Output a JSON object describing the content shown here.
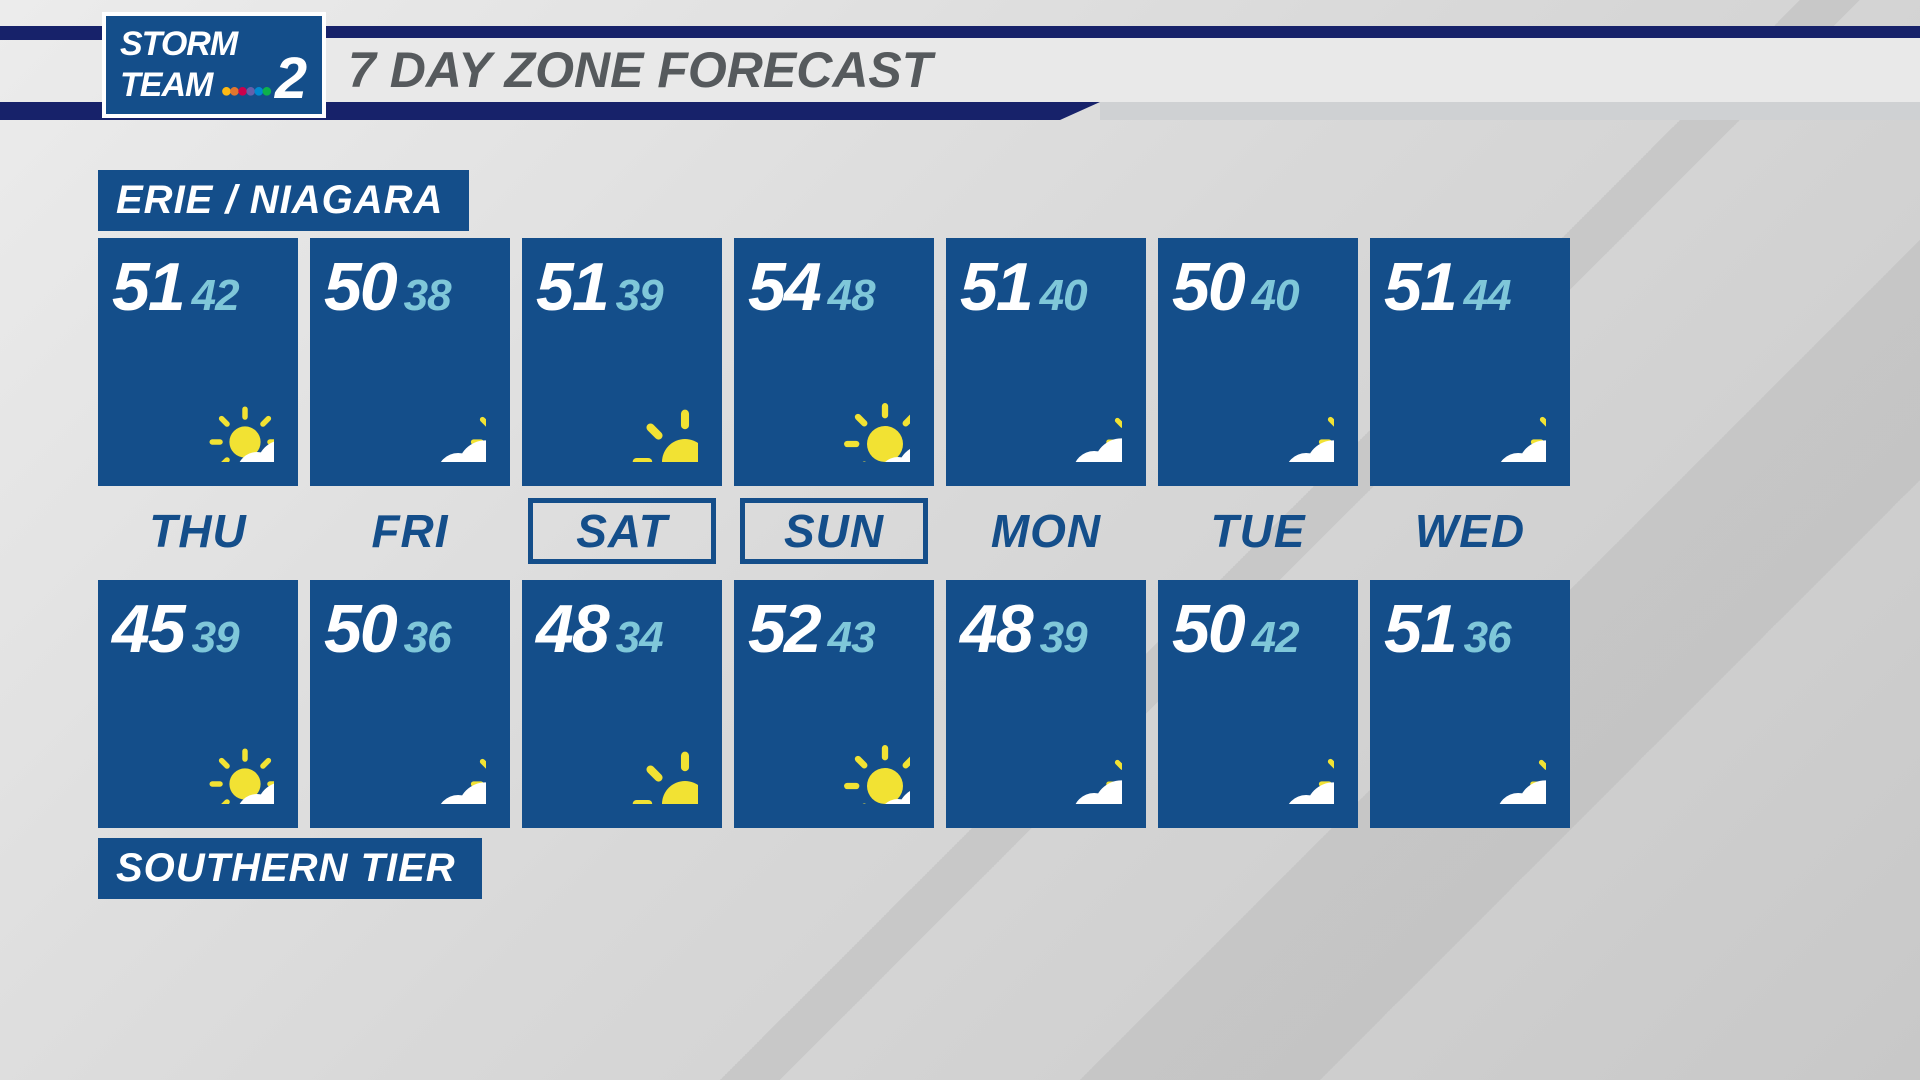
{
  "header": {
    "logo_line1": "STORM",
    "logo_line2a": "TEAM",
    "logo_line2b": "2",
    "title": "7 DAY ZONE FORECAST"
  },
  "colors": {
    "card_bg": "#144e8a",
    "navy": "#17226a",
    "strip_bg": "#e9e9e9",
    "title_text": "#565a5d",
    "hi_text": "#ffffff",
    "lo_text": "#7fc7d9",
    "sun": "#f2e233",
    "cloud": "#ffffff",
    "drop": "#69b9d1"
  },
  "zones": {
    "top_label": "ERIE / NIAGARA",
    "bottom_label": "SOUTHERN TIER"
  },
  "days": [
    {
      "abbr": "THU",
      "weekend": false
    },
    {
      "abbr": "FRI",
      "weekend": false
    },
    {
      "abbr": "SAT",
      "weekend": true
    },
    {
      "abbr": "SUN",
      "weekend": true
    },
    {
      "abbr": "MON",
      "weekend": false
    },
    {
      "abbr": "TUE",
      "weekend": false
    },
    {
      "abbr": "WED",
      "weekend": false
    }
  ],
  "forecast_top": [
    {
      "hi": "51",
      "lo": "42",
      "icon": "sun-cloud-drop"
    },
    {
      "hi": "50",
      "lo": "38",
      "icon": "cloud-sun"
    },
    {
      "hi": "51",
      "lo": "39",
      "icon": "mostly-sunny"
    },
    {
      "hi": "54",
      "lo": "48",
      "icon": "sun-cloud"
    },
    {
      "hi": "51",
      "lo": "40",
      "icon": "cloud-sun-drop"
    },
    {
      "hi": "50",
      "lo": "40",
      "icon": "cloud-sun"
    },
    {
      "hi": "51",
      "lo": "44",
      "icon": "cloud-sun"
    }
  ],
  "forecast_bottom": [
    {
      "hi": "45",
      "lo": "39",
      "icon": "sun-cloud-drop"
    },
    {
      "hi": "50",
      "lo": "36",
      "icon": "cloud-sun"
    },
    {
      "hi": "48",
      "lo": "34",
      "icon": "mostly-sunny"
    },
    {
      "hi": "52",
      "lo": "43",
      "icon": "sun-cloud"
    },
    {
      "hi": "48",
      "lo": "39",
      "icon": "cloud-sun-drop"
    },
    {
      "hi": "50",
      "lo": "42",
      "icon": "cloud-sun"
    },
    {
      "hi": "51",
      "lo": "36",
      "icon": "cloud-sun-drop"
    }
  ]
}
